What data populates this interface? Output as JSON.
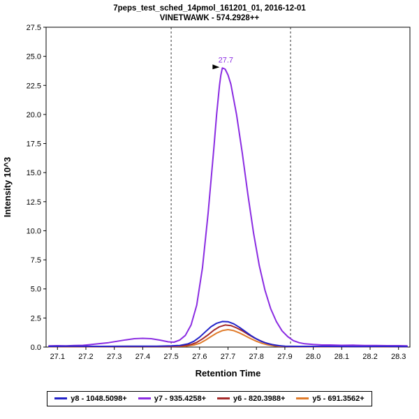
{
  "header": {
    "title_line1": "7peps_test_sched_14pmol_161201_01, 2016-12-01",
    "title_line2": "VINETWAWK - 574.2928++"
  },
  "chart_data": {
    "type": "line",
    "title": "7peps_test_sched_14pmol_161201_01, 2016-12-01 / VINETWAWK - 574.2928++",
    "xlabel": "Retention Time",
    "ylabel": "Intensity 10^3",
    "xlim": [
      27.06,
      28.34
    ],
    "ylim": [
      0,
      27.5
    ],
    "xticks": [
      27.1,
      27.2,
      27.3,
      27.4,
      27.5,
      27.6,
      27.7,
      27.8,
      27.9,
      28.0,
      28.1,
      28.2,
      28.3
    ],
    "yticks": [
      0.0,
      2.5,
      5.0,
      7.5,
      10.0,
      12.5,
      15.0,
      17.5,
      20.0,
      22.5,
      25.0,
      27.5
    ],
    "grid": false,
    "legend_position": "bottom",
    "integration_boundaries": [
      27.5,
      27.92
    ],
    "peak_annotation": {
      "text": "27.7",
      "x": 27.68,
      "y": 24.0,
      "color": "#8a2be2"
    },
    "series": [
      {
        "name": "y8 - 1048.5098+",
        "color": "#2222c8",
        "points": [
          [
            27.07,
            0.06
          ],
          [
            27.15,
            0.07
          ],
          [
            27.25,
            0.06
          ],
          [
            27.35,
            0.08
          ],
          [
            27.45,
            0.07
          ],
          [
            27.5,
            0.1
          ],
          [
            27.53,
            0.14
          ],
          [
            27.56,
            0.28
          ],
          [
            27.58,
            0.5
          ],
          [
            27.6,
            0.85
          ],
          [
            27.62,
            1.3
          ],
          [
            27.64,
            1.75
          ],
          [
            27.66,
            2.05
          ],
          [
            27.68,
            2.2
          ],
          [
            27.7,
            2.18
          ],
          [
            27.72,
            2.0
          ],
          [
            27.74,
            1.7
          ],
          [
            27.76,
            1.35
          ],
          [
            27.78,
            1.0
          ],
          [
            27.8,
            0.7
          ],
          [
            27.82,
            0.46
          ],
          [
            27.84,
            0.3
          ],
          [
            27.86,
            0.19
          ],
          [
            27.88,
            0.12
          ],
          [
            27.9,
            0.08
          ],
          [
            27.95,
            0.06
          ],
          [
            28.05,
            0.06
          ],
          [
            28.15,
            0.05
          ],
          [
            28.25,
            0.06
          ],
          [
            28.33,
            0.05
          ]
        ]
      },
      {
        "name": "y7 - 935.4258+",
        "color": "#8a2be2",
        "points": [
          [
            27.07,
            0.1
          ],
          [
            27.1,
            0.12
          ],
          [
            27.13,
            0.1
          ],
          [
            27.16,
            0.13
          ],
          [
            27.19,
            0.15
          ],
          [
            27.22,
            0.22
          ],
          [
            27.25,
            0.3
          ],
          [
            27.28,
            0.38
          ],
          [
            27.31,
            0.5
          ],
          [
            27.34,
            0.62
          ],
          [
            27.37,
            0.72
          ],
          [
            27.4,
            0.75
          ],
          [
            27.43,
            0.72
          ],
          [
            27.46,
            0.6
          ],
          [
            27.49,
            0.45
          ],
          [
            27.51,
            0.42
          ],
          [
            27.53,
            0.6
          ],
          [
            27.55,
            1.0
          ],
          [
            27.57,
            1.9
          ],
          [
            27.59,
            3.6
          ],
          [
            27.61,
            6.8
          ],
          [
            27.63,
            11.5
          ],
          [
            27.65,
            17.0
          ],
          [
            27.66,
            20.0
          ],
          [
            27.67,
            22.5
          ],
          [
            27.675,
            23.4
          ],
          [
            27.68,
            24.0
          ],
          [
            27.69,
            23.9
          ],
          [
            27.7,
            23.4
          ],
          [
            27.71,
            22.6
          ],
          [
            27.73,
            20.0
          ],
          [
            27.75,
            16.7
          ],
          [
            27.77,
            13.1
          ],
          [
            27.79,
            9.8
          ],
          [
            27.81,
            7.0
          ],
          [
            27.83,
            4.9
          ],
          [
            27.85,
            3.3
          ],
          [
            27.87,
            2.2
          ],
          [
            27.89,
            1.4
          ],
          [
            27.91,
            0.9
          ],
          [
            27.93,
            0.55
          ],
          [
            27.95,
            0.38
          ],
          [
            27.97,
            0.28
          ],
          [
            28.0,
            0.22
          ],
          [
            28.03,
            0.18
          ],
          [
            28.06,
            0.18
          ],
          [
            28.1,
            0.15
          ],
          [
            28.14,
            0.16
          ],
          [
            28.18,
            0.13
          ],
          [
            28.22,
            0.14
          ],
          [
            28.26,
            0.12
          ],
          [
            28.3,
            0.12
          ],
          [
            28.33,
            0.1
          ]
        ]
      },
      {
        "name": "y6 - 820.3988+",
        "color": "#a52a2a",
        "points": [
          [
            27.07,
            0.04
          ],
          [
            27.2,
            0.04
          ],
          [
            27.35,
            0.05
          ],
          [
            27.5,
            0.06
          ],
          [
            27.54,
            0.1
          ],
          [
            27.57,
            0.22
          ],
          [
            27.59,
            0.4
          ],
          [
            27.61,
            0.7
          ],
          [
            27.63,
            1.05
          ],
          [
            27.65,
            1.45
          ],
          [
            27.67,
            1.75
          ],
          [
            27.69,
            1.9
          ],
          [
            27.71,
            1.85
          ],
          [
            27.73,
            1.65
          ],
          [
            27.75,
            1.4
          ],
          [
            27.77,
            1.1
          ],
          [
            27.79,
            0.82
          ],
          [
            27.81,
            0.58
          ],
          [
            27.83,
            0.38
          ],
          [
            27.85,
            0.24
          ],
          [
            27.87,
            0.14
          ],
          [
            27.89,
            0.08
          ],
          [
            27.92,
            0.05
          ],
          [
            28.0,
            0.04
          ],
          [
            28.1,
            0.04
          ],
          [
            28.2,
            0.04
          ],
          [
            28.33,
            0.03
          ]
        ]
      },
      {
        "name": "y5 - 691.3562+",
        "color": "#e07b2a",
        "points": [
          [
            27.07,
            0.03
          ],
          [
            27.2,
            0.03
          ],
          [
            27.35,
            0.04
          ],
          [
            27.5,
            0.04
          ],
          [
            27.55,
            0.08
          ],
          [
            27.58,
            0.18
          ],
          [
            27.6,
            0.32
          ],
          [
            27.62,
            0.58
          ],
          [
            27.64,
            0.9
          ],
          [
            27.66,
            1.2
          ],
          [
            27.68,
            1.42
          ],
          [
            27.7,
            1.5
          ],
          [
            27.72,
            1.42
          ],
          [
            27.74,
            1.22
          ],
          [
            27.76,
            0.98
          ],
          [
            27.78,
            0.72
          ],
          [
            27.8,
            0.5
          ],
          [
            27.82,
            0.32
          ],
          [
            27.84,
            0.19
          ],
          [
            27.86,
            0.11
          ],
          [
            27.88,
            0.06
          ],
          [
            27.92,
            0.04
          ],
          [
            28.0,
            0.03
          ],
          [
            28.1,
            0.03
          ],
          [
            28.2,
            0.03
          ],
          [
            28.33,
            0.03
          ]
        ]
      }
    ]
  }
}
